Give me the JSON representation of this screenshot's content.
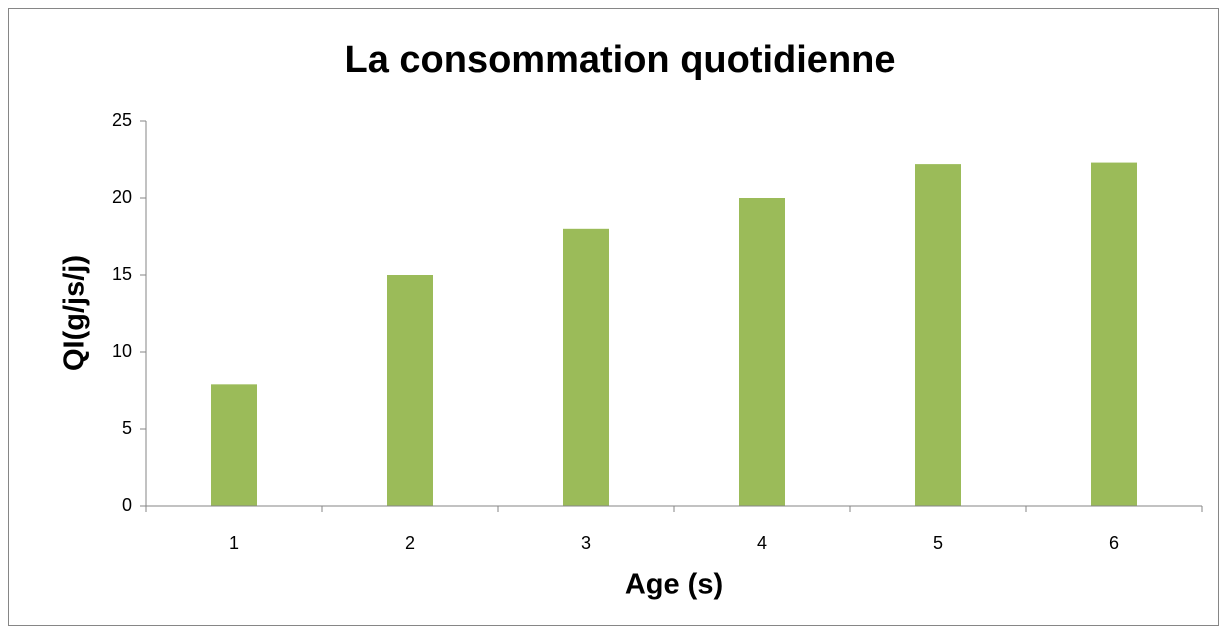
{
  "chart_data": {
    "type": "bar",
    "title": "La consommation quotidienne",
    "x_label": "Age (s)",
    "y_label": "QI(g/js/j)",
    "categories": [
      "1",
      "2",
      "3",
      "4",
      "5",
      "6"
    ],
    "values": [
      7.9,
      15,
      18,
      20,
      22.2,
      22.3
    ],
    "color": "#9bbb59",
    "ylim": [
      0,
      25
    ],
    "yticks": [
      0,
      5,
      10,
      15,
      20,
      25
    ],
    "grid": false
  }
}
